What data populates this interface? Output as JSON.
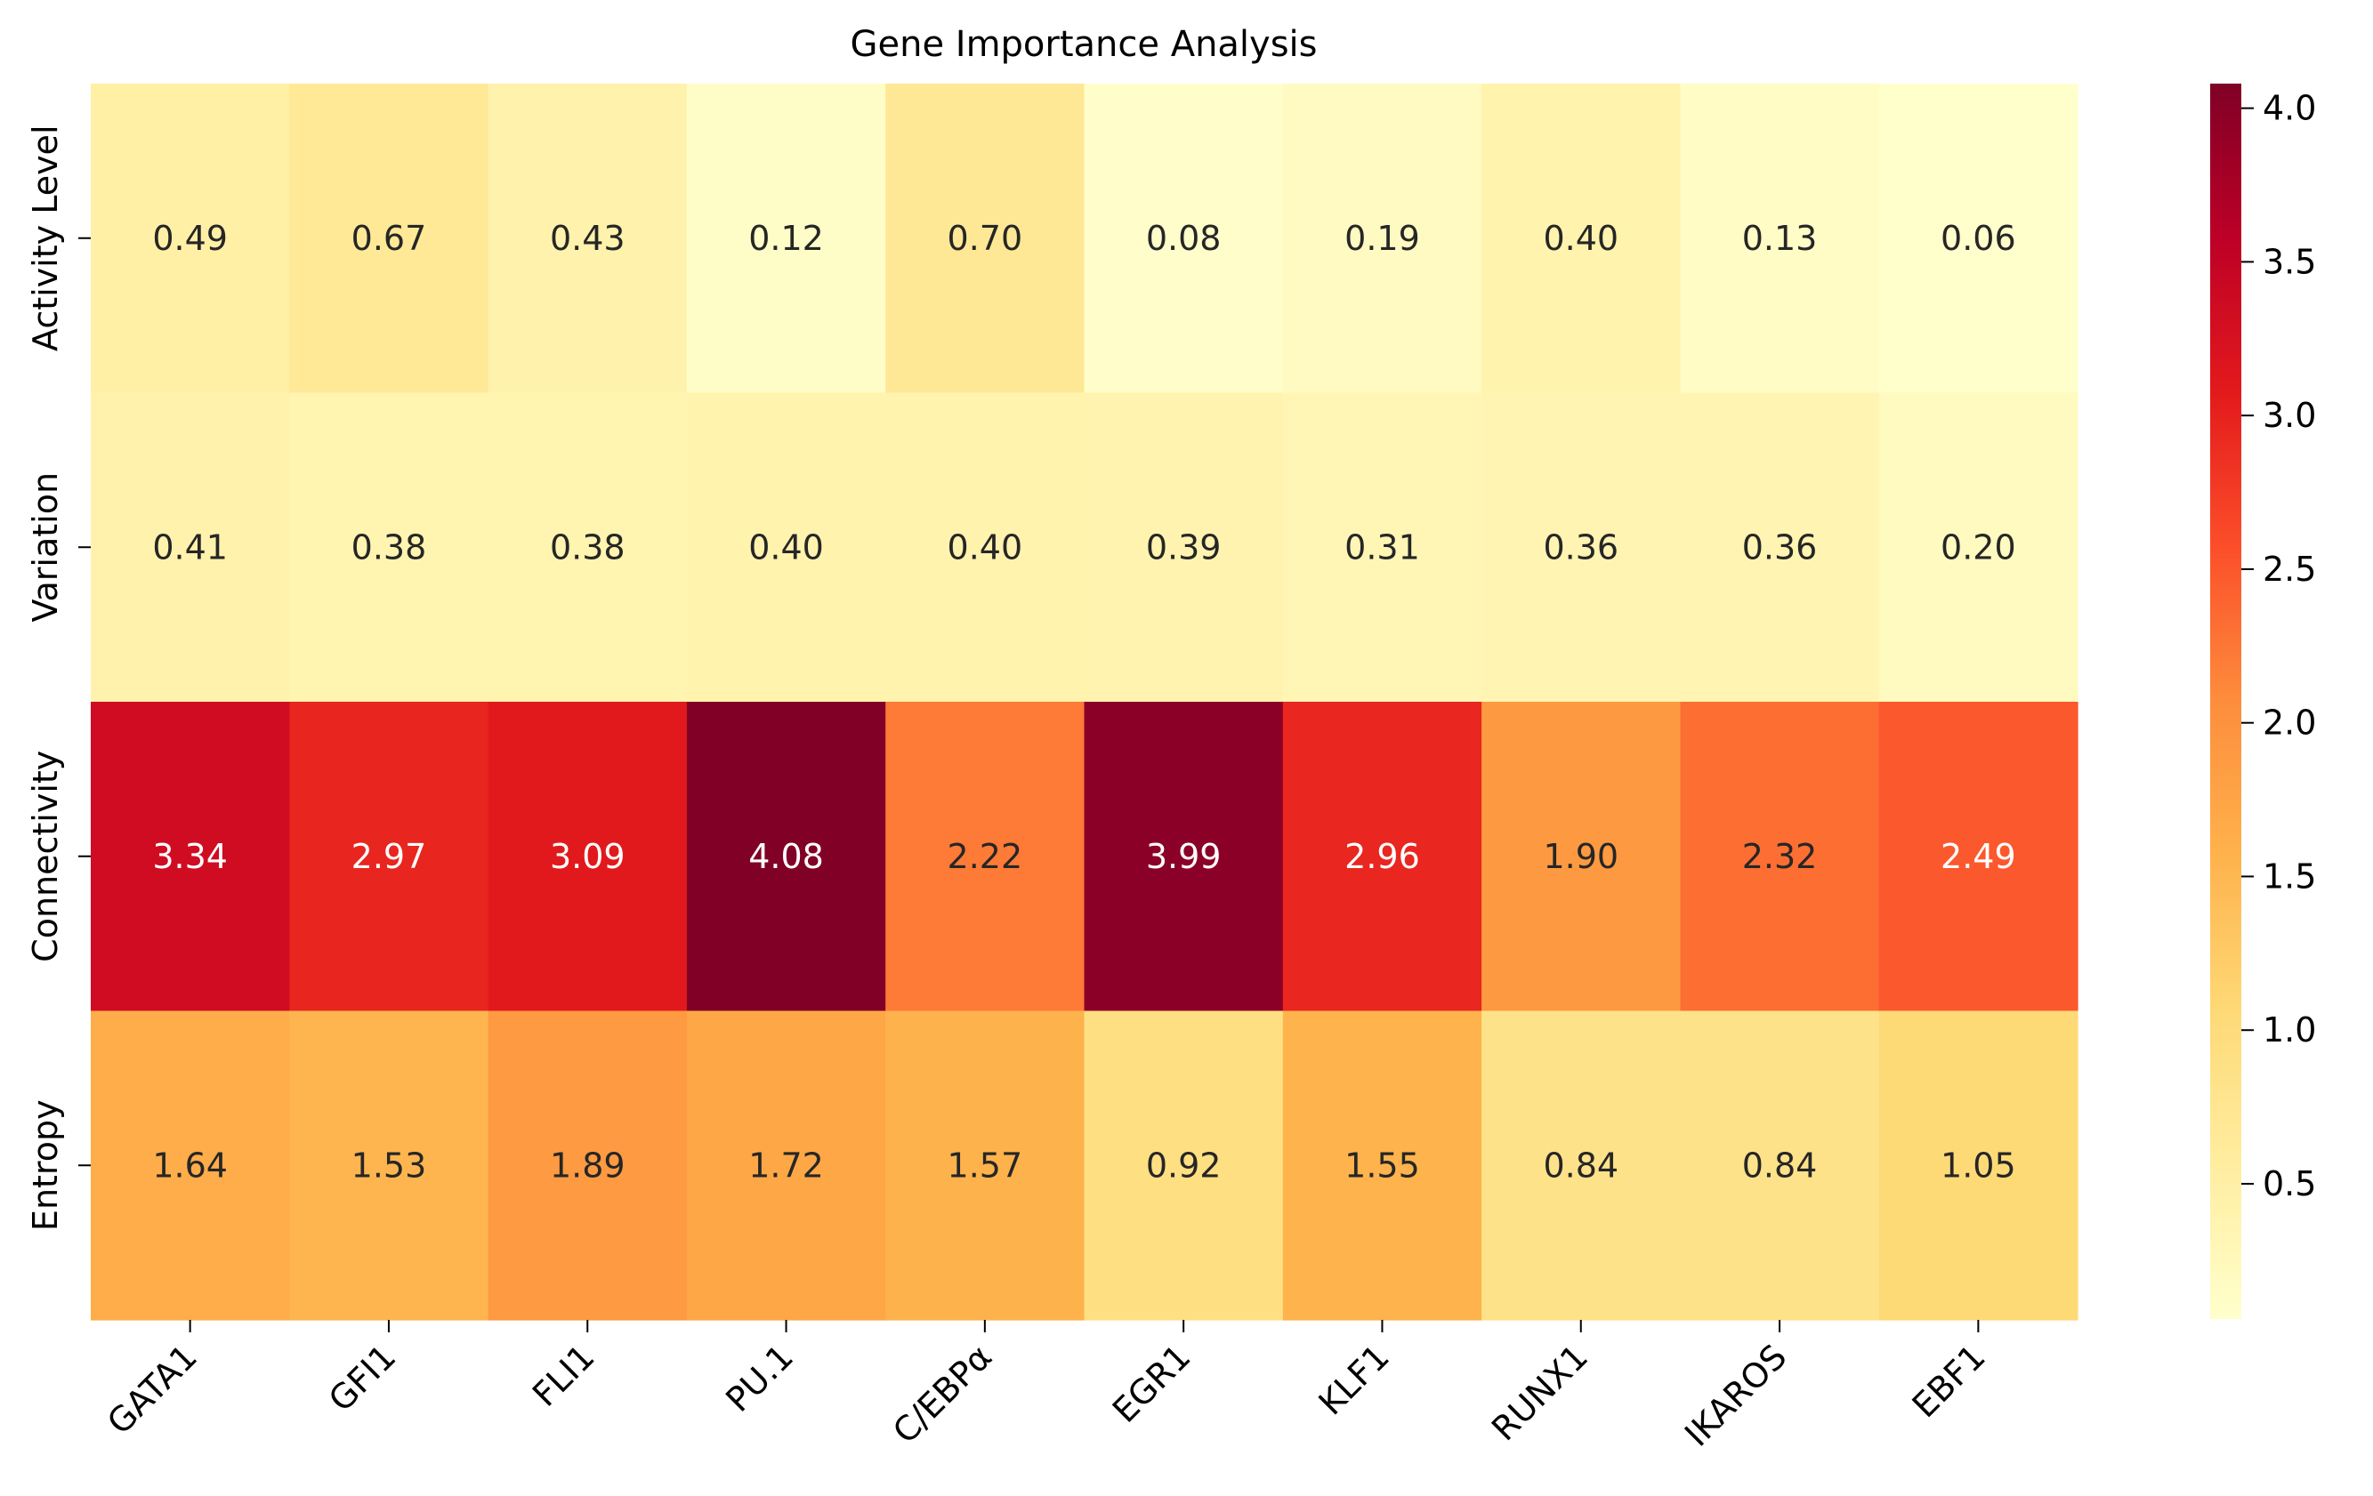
{
  "chart_data": {
    "type": "heatmap",
    "title": "Gene Importance Analysis",
    "xlabel": "",
    "ylabel": "",
    "x_categories": [
      "GATA1",
      "GFI1",
      "FLI1",
      "PU.1",
      "C/EBPα",
      "EGR1",
      "KLF1",
      "RUNX1",
      "IKAROS",
      "EBF1"
    ],
    "y_categories": [
      "Activity Level",
      "Variation",
      "Connectivity",
      "Entropy"
    ],
    "values": [
      [
        0.49,
        0.67,
        0.43,
        0.12,
        0.7,
        0.08,
        0.19,
        0.4,
        0.13,
        0.06
      ],
      [
        0.41,
        0.38,
        0.38,
        0.4,
        0.4,
        0.39,
        0.31,
        0.36,
        0.36,
        0.2
      ],
      [
        3.34,
        2.97,
        3.09,
        4.08,
        2.22,
        3.99,
        2.96,
        1.9,
        2.32,
        2.49
      ],
      [
        1.64,
        1.53,
        1.89,
        1.72,
        1.57,
        0.92,
        1.55,
        0.84,
        0.84,
        1.05
      ]
    ],
    "value_format": "0.00",
    "colormap": "YlOrRd",
    "colorbar": {
      "range": [
        0.06,
        4.08
      ],
      "ticks": [
        0.5,
        1.0,
        1.5,
        2.0,
        2.5,
        3.0,
        3.5,
        4.0
      ],
      "tick_labels": [
        "0.5",
        "1.0",
        "1.5",
        "2.0",
        "2.5",
        "3.0",
        "3.5",
        "4.0"
      ]
    },
    "colormap_stops": [
      "#ffffcc",
      "#ffeda0",
      "#fed976",
      "#feb24c",
      "#fd8d3c",
      "#fc4e2a",
      "#e31a1c",
      "#bd0026",
      "#800026"
    ],
    "annotation_colors": {
      "dark": "#262626",
      "light": "#ffffff"
    },
    "grid": false,
    "legend": "colorbar-right"
  }
}
